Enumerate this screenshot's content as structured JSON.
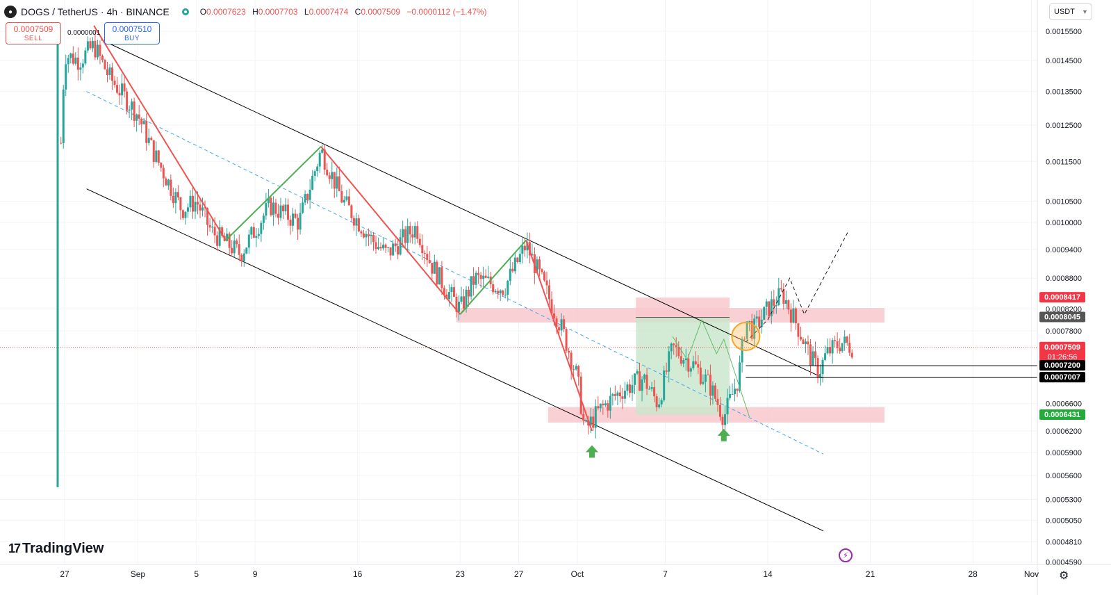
{
  "header": {
    "symbol_icon": "dogs-coin-icon",
    "title": "DOGS / TetherUS · 4h · BINANCE",
    "ohlc": [
      {
        "label": "O",
        "value": "0.0007623"
      },
      {
        "label": "H",
        "value": "0.0007703"
      },
      {
        "label": "L",
        "value": "0.0007474"
      },
      {
        "label": "C",
        "value": "0.0007509"
      }
    ],
    "change": "−0.0000112 (−1.47%)"
  },
  "trade": {
    "sell_price": "0.0007509",
    "sell_label": "SELL",
    "buy_price": "0.0007510",
    "buy_label": "BUY",
    "spread": "0.0000001"
  },
  "currency": "USDT",
  "brand": "TradingView",
  "colors": {
    "up": "#26a69a",
    "down": "#ef5350",
    "zone": "#f8c8cc",
    "target": "#c8e6c9",
    "stop": "#f8c8cc",
    "channel": "#000000",
    "midline": "#42a5f5"
  },
  "chart_data": {
    "type": "candlestick",
    "symbol": "DOGS / TetherUS",
    "timeframe": "4h",
    "exchange": "BINANCE",
    "y_scale": "log",
    "x_tick_labels": [
      "27",
      "Sep",
      "5",
      "9",
      "16",
      "23",
      "27",
      "Oct",
      "7",
      "14",
      "21",
      "28",
      "Nov"
    ],
    "y_tick_labels": [
      "0.0015500",
      "0.0014500",
      "0.0013500",
      "0.0012500",
      "0.0011500",
      "0.0010500",
      "0.0010000",
      "0.0009400",
      "0.0008800",
      "0.0008200",
      "0.0007800",
      "0.0006600",
      "0.0006200",
      "0.0005900",
      "0.0005600",
      "0.0005300",
      "0.0005050",
      "0.0004810",
      "0.0004590"
    ],
    "price_labels": [
      {
        "value": "0.0008417",
        "kind": "stop"
      },
      {
        "value": "0.0008045",
        "kind": "entry"
      },
      {
        "value": "0.0007509",
        "kind": "last",
        "countdown": "01:26:56"
      },
      {
        "value": "0.0007200",
        "kind": "level"
      },
      {
        "value": "0.0007007",
        "kind": "level"
      },
      {
        "value": "0.0006431",
        "kind": "target"
      }
    ],
    "close_path": [
      [
        "Aug 26 18:00",
        0.0012
      ],
      [
        "Aug 27 00:00",
        0.00147
      ],
      [
        "Aug 28 00:00",
        0.00145
      ],
      [
        "Aug 29 00:00",
        0.0015
      ],
      [
        "Aug 30 00:00",
        0.0014
      ],
      [
        "Sep 1 00:00",
        0.00128
      ],
      [
        "Sep 2 00:00",
        0.00118
      ],
      [
        "Sep 4 00:00",
        0.00103
      ],
      [
        "Sep 5 00:00",
        0.00105
      ],
      [
        "Sep 6 00:00",
        0.00098
      ],
      [
        "Sep 8 00:00",
        0.00093
      ],
      [
        "Sep 10 00:00",
        0.00104
      ],
      [
        "Sep 12 00:00",
        0.001
      ],
      [
        "Sep 13 12:00",
        0.00118
      ],
      [
        "Sep 15 00:00",
        0.00105
      ],
      [
        "Sep 17 00:00",
        0.00096
      ],
      [
        "Sep 18 00:00",
        0.00093
      ],
      [
        "Sep 20 00:00",
        0.00099
      ],
      [
        "Sep 21 00:00",
        0.00091
      ],
      [
        "Sep 22 00:00",
        0.00086
      ],
      [
        "Sep 23 00:00",
        0.00082
      ],
      [
        "Sep 24 00:00",
        0.00088
      ],
      [
        "Sep 26 00:00",
        0.00086
      ],
      [
        "Sep 27 12:00",
        0.00095
      ],
      [
        "Sep 28 12:00",
        0.00088
      ],
      [
        "Sep 30 00:00",
        0.00078
      ],
      [
        "Oct 1 00:00",
        0.0007
      ],
      [
        "Oct 1 12:00",
        0.00062
      ],
      [
        "Oct 2 12:00",
        0.00065
      ],
      [
        "Oct 4 00:00",
        0.00068
      ],
      [
        "Oct 5 12:00",
        0.0007
      ],
      [
        "Oct 6 12:00",
        0.00066
      ],
      [
        "Oct 7 12:00",
        0.00075
      ],
      [
        "Oct 9 00:00",
        0.00072
      ],
      [
        "Oct 10 00:00",
        0.00069
      ],
      [
        "Oct 11 00:00",
        0.00064
      ],
      [
        "Oct 12 00:00",
        0.0007
      ],
      [
        "Oct 12 12:00",
        0.0008
      ],
      [
        "Oct 13 00:00",
        0.00078
      ],
      [
        "Oct 14 00:00",
        0.00082
      ],
      [
        "Oct 15 00:00",
        0.00085
      ],
      [
        "Oct 16 00:00",
        0.00079
      ],
      [
        "Oct 17 00:00",
        0.00073
      ],
      [
        "Oct 17 12:00",
        0.00071
      ],
      [
        "Oct 18 00:00",
        0.00074
      ],
      [
        "Oct 19 00:00",
        0.00076
      ],
      [
        "Oct 19 20:00",
        0.0007509
      ]
    ]
  }
}
